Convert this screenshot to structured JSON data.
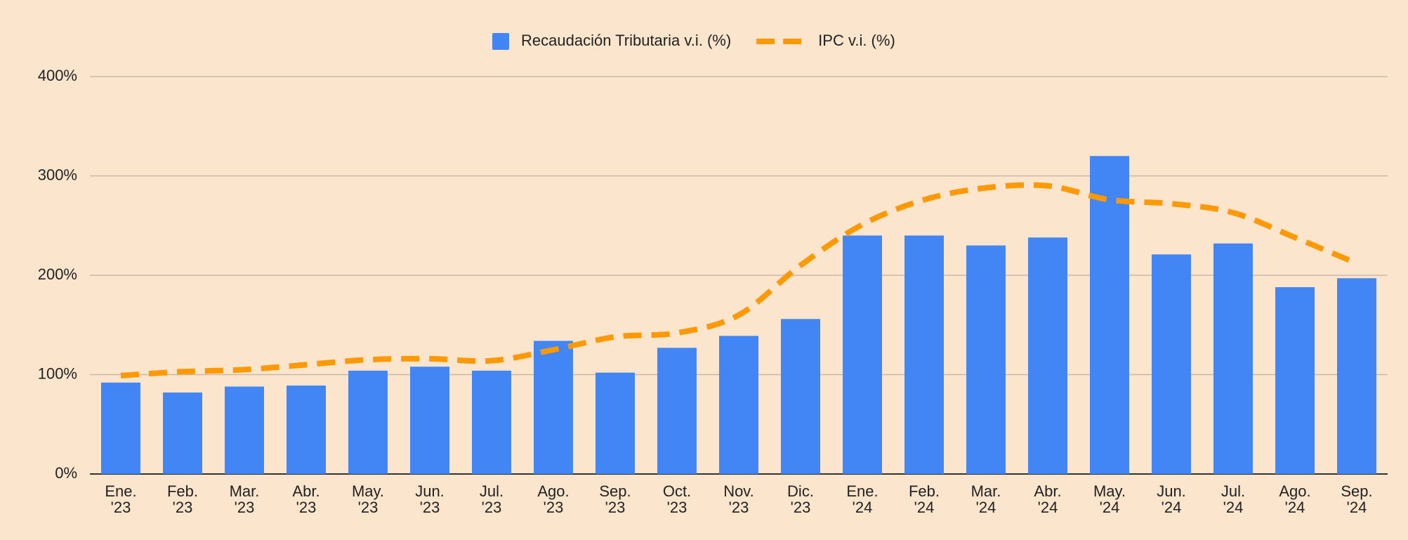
{
  "chart_data": {
    "type": "bar",
    "categories": [
      [
        "Ene.",
        "'23"
      ],
      [
        "Feb.",
        "'23"
      ],
      [
        "Mar.",
        "'23"
      ],
      [
        "Abr.",
        "'23"
      ],
      [
        "May.",
        "'23"
      ],
      [
        "Jun.",
        "'23"
      ],
      [
        "Jul.",
        "'23"
      ],
      [
        "Ago.",
        "'23"
      ],
      [
        "Sep.",
        "'23"
      ],
      [
        "Oct.",
        "'23"
      ],
      [
        "Nov.",
        "'23"
      ],
      [
        "Dic.",
        "'23"
      ],
      [
        "Ene.",
        "'24"
      ],
      [
        "Feb.",
        "'24"
      ],
      [
        "Mar.",
        "'24"
      ],
      [
        "Abr.",
        "'24"
      ],
      [
        "May.",
        "'24"
      ],
      [
        "Jun.",
        "'24"
      ],
      [
        "Jul.",
        "'24"
      ],
      [
        "Ago.",
        "'24"
      ],
      [
        "Sep.",
        "'24"
      ]
    ],
    "series": [
      {
        "name": "Recaudación Tributaria v.i. (%)",
        "type": "bar",
        "color": "#4285f4",
        "values": [
          92,
          82,
          88,
          89,
          104,
          108,
          104,
          134,
          102,
          127,
          139,
          156,
          240,
          240,
          230,
          238,
          320,
          221,
          232,
          188,
          197
        ]
      },
      {
        "name": "IPC v.i. (%)",
        "type": "line",
        "color": "#ff9900",
        "dashed": true,
        "smooth": true,
        "values": [
          99,
          103,
          105,
          110,
          115,
          116,
          114,
          125,
          138,
          142,
          160,
          210,
          251,
          276,
          288,
          290,
          276,
          272,
          263,
          238,
          212
        ]
      }
    ],
    "ylim": [
      0,
      400
    ],
    "yticks": [
      {
        "value": 0,
        "label": "0%"
      },
      {
        "value": 100,
        "label": "100%"
      },
      {
        "value": 200,
        "label": "200%"
      },
      {
        "value": 300,
        "label": "300%"
      },
      {
        "value": 400,
        "label": "400%"
      }
    ],
    "grid": true,
    "legend": "top"
  }
}
